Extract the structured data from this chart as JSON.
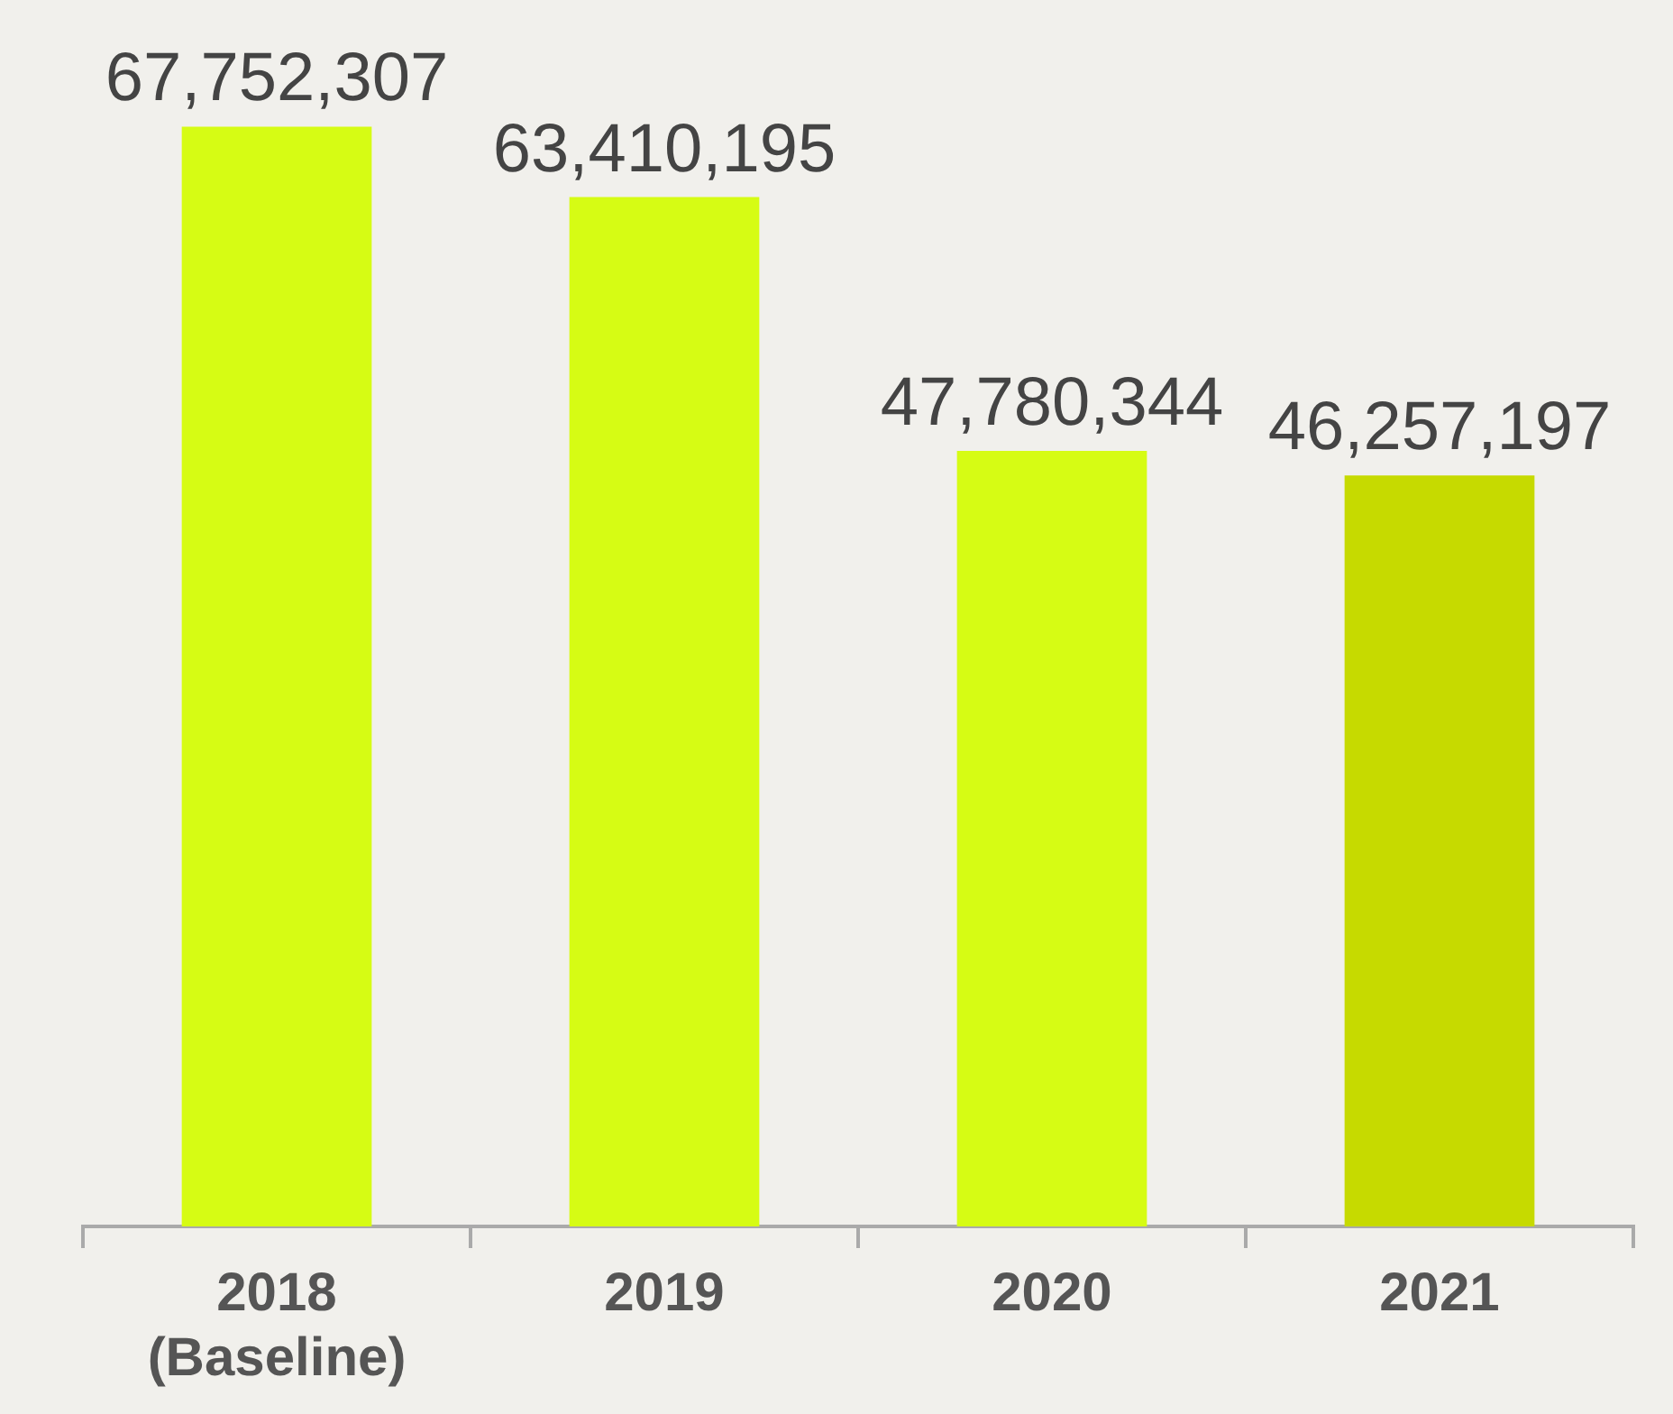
{
  "chart_data": {
    "type": "bar",
    "categories": [
      "2018 (Baseline)",
      "2019",
      "2020",
      "2021"
    ],
    "values": [
      67752307,
      63410195,
      47780344,
      46257197
    ],
    "colors": [
      "#d6fc14",
      "#d6fc14",
      "#d6fc14",
      "#c6da00"
    ],
    "value_labels": [
      "67,752,307",
      "63,410,195",
      "47,780,344",
      "46,257,197"
    ],
    "grid": false,
    "legend": false
  }
}
